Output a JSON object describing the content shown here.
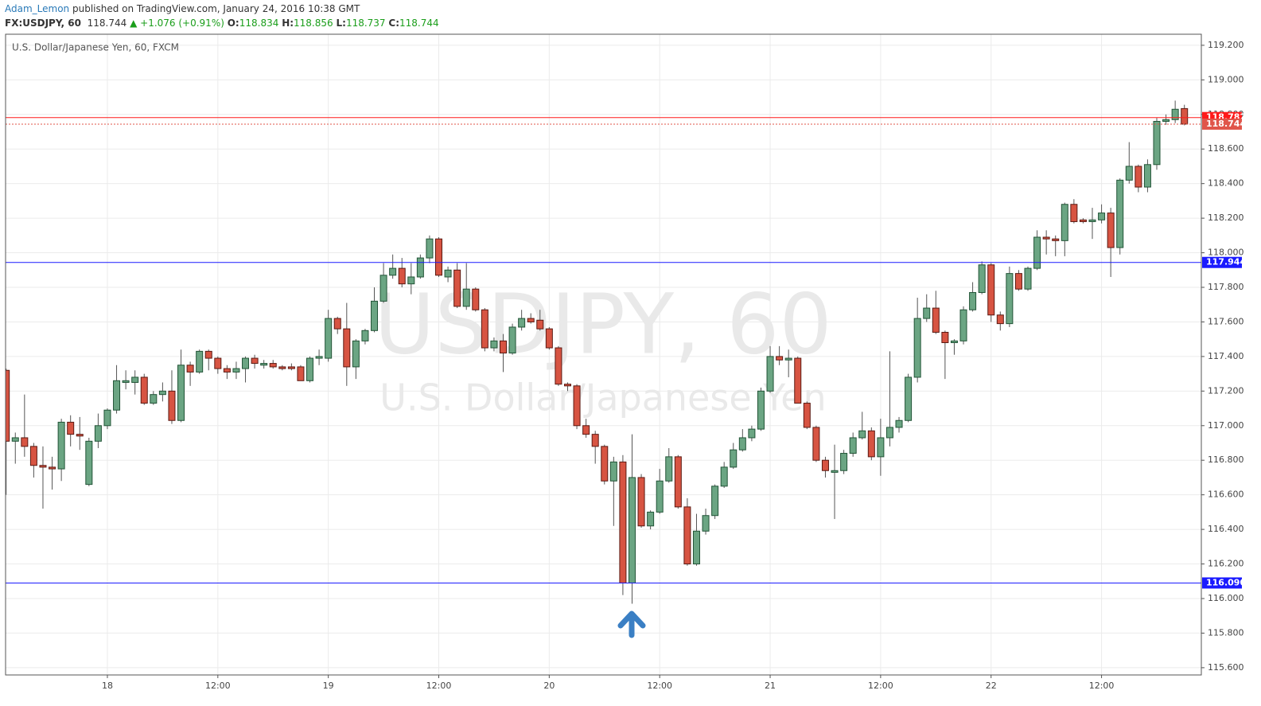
{
  "header": {
    "author": "Adam_Lemon",
    "published": "published on TradingView.com, January 24, 2016 10:38 GMT",
    "symbol": "FX:USDJPY, 60",
    "last": "118.744",
    "change": "▲ +1.076 (+0.91%)",
    "ohlc": [
      {
        "label": "O:",
        "value": "118.834"
      },
      {
        "label": "H:",
        "value": "118.856"
      },
      {
        "label": "L:",
        "value": "118.737"
      },
      {
        "label": "C:",
        "value": "118.744"
      }
    ]
  },
  "chart_data": {
    "type": "candlestick",
    "legend": "U.S. Dollar/Japanese Yen, 60, FXCM",
    "watermark": "USDJPY, 60",
    "watermark_subtitle": "U.S. Dollar/Japanese Yen",
    "up_color": "#6ba583",
    "up_border": "#225437",
    "down_color": "#d75442",
    "down_border": "#5b1a13",
    "grid": true,
    "x": [
      -11,
      -10,
      -9,
      -8,
      -7,
      -6,
      -5,
      -4,
      -3,
      -2,
      -1,
      0,
      1,
      2,
      3,
      4,
      5,
      6,
      7,
      8,
      9,
      10,
      11,
      12,
      13,
      14,
      15,
      16,
      17,
      18,
      19,
      20,
      21,
      22,
      23,
      24,
      25,
      26,
      27,
      28,
      29,
      30,
      31,
      32,
      33,
      34,
      35,
      36,
      37,
      38,
      39,
      40,
      41,
      42,
      43,
      44,
      45,
      46,
      47,
      48,
      49,
      50,
      51,
      52,
      53,
      54,
      55,
      56,
      57,
      58,
      59,
      60,
      61,
      62,
      63,
      64,
      65,
      66,
      67,
      68,
      69,
      70,
      71,
      72,
      73,
      74,
      75,
      76,
      77,
      78,
      79,
      80,
      81,
      82,
      83,
      84,
      85,
      86,
      87,
      88,
      89,
      90,
      91,
      92,
      93,
      94,
      95,
      96,
      97,
      98,
      99,
      100,
      101,
      102,
      103,
      104,
      105,
      106,
      107,
      108,
      109,
      110,
      111,
      112,
      113,
      114,
      115,
      116,
      117
    ],
    "open": [
      117.32,
      116.91,
      116.93,
      116.88,
      116.77,
      116.76,
      116.75,
      117.02,
      116.95,
      116.66,
      116.91,
      117.0,
      117.09,
      117.25,
      117.25,
      117.28,
      117.13,
      117.18,
      117.2,
      117.03,
      117.35,
      117.31,
      117.43,
      117.39,
      117.33,
      117.31,
      117.33,
      117.39,
      117.35,
      117.36,
      117.34,
      117.34,
      117.34,
      117.26,
      117.39,
      117.39,
      117.62,
      117.56,
      117.34,
      117.49,
      117.55,
      117.72,
      117.87,
      117.91,
      117.82,
      117.86,
      117.97,
      118.08,
      117.86,
      117.9,
      117.69,
      117.79,
      117.67,
      117.45,
      117.49,
      117.42,
      117.57,
      117.62,
      117.61,
      117.56,
      117.45,
      117.24,
      117.23,
      117.0,
      116.95,
      116.88,
      116.68,
      116.79,
      116.09,
      116.7,
      116.42,
      116.5,
      116.68,
      116.82,
      116.53,
      116.2,
      116.39,
      116.48,
      116.65,
      116.76,
      116.86,
      116.93,
      116.98,
      117.2,
      117.4,
      117.38,
      117.39,
      117.13,
      116.99,
      116.8,
      116.73,
      116.74,
      116.84,
      116.93,
      116.97,
      116.82,
      116.93,
      116.99,
      117.03,
      117.28,
      117.62,
      117.68,
      117.54,
      117.48,
      117.49,
      117.67,
      117.77,
      117.93,
      117.64,
      117.59,
      117.88,
      117.79,
      117.91,
      118.09,
      118.08,
      118.07,
      118.28,
      118.19,
      118.18,
      118.19,
      118.23,
      118.03,
      118.42,
      118.5,
      118.38,
      118.51,
      118.76,
      118.77,
      118.834
    ],
    "high": [
      117.33,
      116.96,
      117.18,
      116.9,
      116.88,
      116.82,
      117.04,
      117.06,
      117.05,
      116.93,
      117.07,
      117.1,
      117.35,
      117.32,
      117.32,
      117.3,
      117.2,
      117.25,
      117.32,
      117.44,
      117.37,
      117.44,
      117.44,
      117.4,
      117.35,
      117.37,
      117.4,
      117.41,
      117.38,
      117.38,
      117.35,
      117.36,
      117.35,
      117.4,
      117.44,
      117.67,
      117.63,
      117.71,
      117.5,
      117.56,
      117.8,
      117.94,
      117.99,
      117.97,
      117.94,
      117.99,
      118.1,
      118.09,
      117.92,
      117.94,
      117.94,
      117.8,
      117.68,
      117.51,
      117.53,
      117.59,
      117.67,
      117.65,
      117.67,
      117.57,
      117.46,
      117.25,
      117.24,
      117.04,
      116.97,
      116.89,
      116.82,
      116.83,
      116.95,
      116.72,
      116.51,
      116.75,
      116.87,
      116.83,
      116.58,
      116.49,
      116.52,
      116.66,
      116.79,
      116.9,
      116.98,
      117.0,
      117.22,
      117.46,
      117.46,
      117.44,
      117.4,
      117.14,
      117.0,
      116.82,
      116.89,
      116.86,
      116.96,
      117.08,
      116.99,
      117.04,
      117.43,
      117.05,
      117.3,
      117.74,
      117.76,
      117.78,
      117.55,
      117.5,
      117.69,
      117.83,
      117.95,
      117.94,
      117.66,
      117.92,
      117.9,
      117.92,
      118.13,
      118.13,
      118.1,
      118.29,
      118.31,
      118.2,
      118.26,
      118.28,
      118.26,
      118.43,
      118.64,
      118.51,
      118.54,
      118.78,
      118.8,
      118.88,
      118.856
    ],
    "low": [
      116.6,
      116.78,
      116.82,
      116.7,
      116.52,
      116.63,
      116.68,
      116.88,
      116.86,
      116.65,
      116.87,
      116.98,
      117.07,
      117.21,
      117.18,
      117.12,
      117.12,
      117.14,
      117.01,
      117.02,
      117.23,
      117.3,
      117.32,
      117.3,
      117.27,
      117.27,
      117.25,
      117.33,
      117.33,
      117.33,
      117.32,
      117.32,
      117.26,
      117.25,
      117.35,
      117.37,
      117.53,
      117.23,
      117.27,
      117.47,
      117.54,
      117.71,
      117.85,
      117.8,
      117.76,
      117.85,
      117.94,
      117.86,
      117.83,
      117.68,
      117.67,
      117.66,
      117.43,
      117.43,
      117.31,
      117.41,
      117.55,
      117.59,
      117.55,
      117.44,
      117.23,
      117.2,
      116.98,
      116.93,
      116.78,
      116.66,
      116.42,
      116.02,
      115.97,
      116.41,
      116.4,
      116.49,
      116.67,
      116.52,
      116.19,
      116.19,
      116.37,
      116.46,
      116.64,
      116.75,
      116.85,
      116.91,
      116.97,
      117.19,
      117.35,
      117.28,
      117.13,
      116.98,
      116.79,
      116.7,
      116.46,
      116.72,
      116.82,
      116.92,
      116.8,
      116.71,
      116.88,
      116.96,
      117.02,
      117.25,
      117.6,
      117.53,
      117.27,
      117.41,
      117.47,
      117.66,
      117.76,
      117.6,
      117.55,
      117.57,
      117.78,
      117.78,
      117.9,
      117.99,
      117.98,
      117.98,
      118.17,
      118.17,
      118.08,
      118.17,
      117.86,
      117.99,
      118.4,
      118.35,
      118.35,
      118.48,
      118.74,
      118.75,
      118.737
    ],
    "close": [
      116.91,
      116.93,
      116.88,
      116.77,
      116.76,
      116.75,
      117.02,
      116.95,
      116.94,
      116.91,
      117.0,
      117.09,
      117.26,
      117.26,
      117.28,
      117.13,
      117.18,
      117.2,
      117.03,
      117.35,
      117.31,
      117.43,
      117.39,
      117.33,
      117.31,
      117.33,
      117.39,
      117.36,
      117.36,
      117.34,
      117.33,
      117.33,
      117.26,
      117.39,
      117.4,
      117.62,
      117.56,
      117.34,
      117.49,
      117.55,
      117.72,
      117.87,
      117.91,
      117.82,
      117.86,
      117.97,
      118.08,
      117.87,
      117.9,
      117.69,
      117.79,
      117.67,
      117.45,
      117.49,
      117.42,
      117.57,
      117.62,
      117.6,
      117.56,
      117.45,
      117.24,
      117.23,
      117.0,
      116.95,
      116.88,
      116.68,
      116.79,
      116.09,
      116.7,
      116.42,
      116.5,
      116.68,
      116.82,
      116.53,
      116.2,
      116.39,
      116.48,
      116.65,
      116.76,
      116.86,
      116.93,
      116.98,
      117.2,
      117.4,
      117.38,
      117.39,
      117.13,
      116.99,
      116.8,
      116.74,
      116.74,
      116.84,
      116.93,
      116.97,
      116.82,
      116.93,
      116.99,
      117.03,
      117.28,
      117.62,
      117.68,
      117.54,
      117.48,
      117.49,
      117.67,
      117.77,
      117.93,
      117.64,
      117.59,
      117.88,
      117.79,
      117.91,
      118.09,
      118.08,
      118.07,
      118.28,
      118.18,
      118.18,
      118.19,
      118.23,
      118.03,
      118.42,
      118.5,
      118.38,
      118.51,
      118.76,
      118.77,
      118.83,
      118.744
    ],
    "xlim": [
      -11.06,
      118.84
    ],
    "ylim": [
      115.558,
      119.264
    ],
    "xticks": [
      {
        "value": 0,
        "label": "18"
      },
      {
        "value": 12,
        "label": "12:00"
      },
      {
        "value": 24,
        "label": "19"
      },
      {
        "value": 36,
        "label": "12:00"
      },
      {
        "value": 48,
        "label": "20"
      },
      {
        "value": 60,
        "label": "12:00"
      },
      {
        "value": 72,
        "label": "21"
      },
      {
        "value": 84,
        "label": "12:00"
      },
      {
        "value": 96,
        "label": "22"
      },
      {
        "value": 108,
        "label": "12:00"
      }
    ],
    "yticks": [
      {
        "value": 115.6,
        "label": "115.600"
      },
      {
        "value": 115.8,
        "label": "115.800"
      },
      {
        "value": 116,
        "label": "116.000"
      },
      {
        "value": 116.2,
        "label": "116.200"
      },
      {
        "value": 116.4,
        "label": "116.400"
      },
      {
        "value": 116.6,
        "label": "116.600"
      },
      {
        "value": 116.8,
        "label": "116.800"
      },
      {
        "value": 117,
        "label": "117.000"
      },
      {
        "value": 117.2,
        "label": "117.200"
      },
      {
        "value": 117.4,
        "label": "117.400"
      },
      {
        "value": 117.6,
        "label": "117.600"
      },
      {
        "value": 117.8,
        "label": "117.800"
      },
      {
        "value": 118,
        "label": "118.000"
      },
      {
        "value": 118.2,
        "label": "118.200"
      },
      {
        "value": 118.4,
        "label": "118.400"
      },
      {
        "value": 118.6,
        "label": "118.600"
      },
      {
        "value": 118.8,
        "label": "118.800"
      },
      {
        "value": 119,
        "label": "119.000"
      },
      {
        "value": 119.2,
        "label": "119.200"
      }
    ],
    "hlines": [
      {
        "value": 118.782,
        "label": "118.782",
        "color": "#ff1a1a",
        "dash": false
      },
      {
        "value": 118.744,
        "label": "118.744",
        "color": "#e0554a",
        "dash": true
      },
      {
        "value": 117.944,
        "label": "117.944",
        "color": "#1a1aff",
        "dash": false
      },
      {
        "value": 116.09,
        "label": "116.090",
        "color": "#1a1aff",
        "dash": false
      }
    ]
  }
}
